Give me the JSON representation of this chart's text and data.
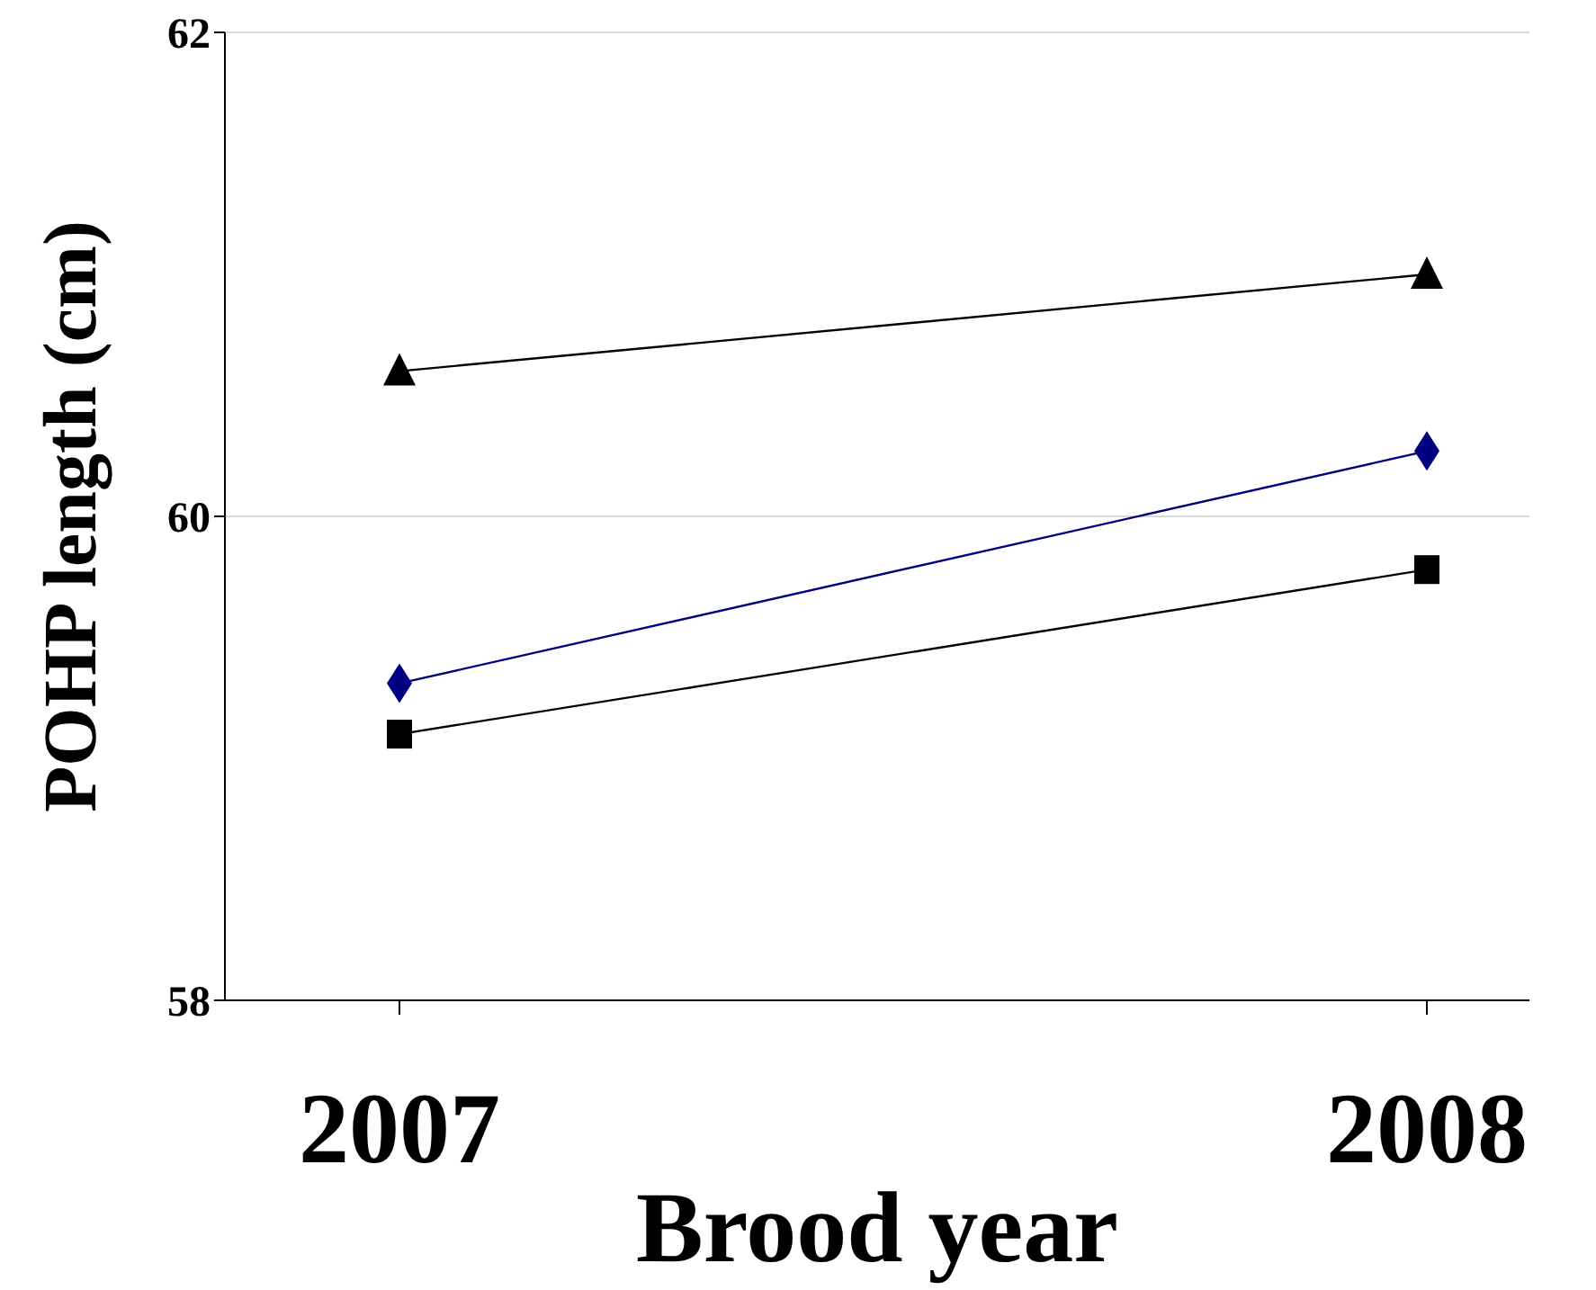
{
  "chart_data": {
    "type": "line",
    "xlabel": "Brood year",
    "ylabel": "POHP length (cm)",
    "categories": [
      "2007",
      "2008"
    ],
    "series": [
      {
        "color": "#000000",
        "values": [
          60.6,
          61.0
        ],
        "marker": "triangle"
      },
      {
        "color": "#000080",
        "values": [
          59.31,
          60.27
        ],
        "marker": "diamond"
      },
      {
        "color": "#000000",
        "values": [
          59.1,
          59.78
        ],
        "marker": "square"
      }
    ],
    "ylim": [
      58,
      62
    ],
    "yticks": [
      58,
      60,
      62
    ],
    "grid": "y",
    "legend": false,
    "line_style": "solid"
  }
}
